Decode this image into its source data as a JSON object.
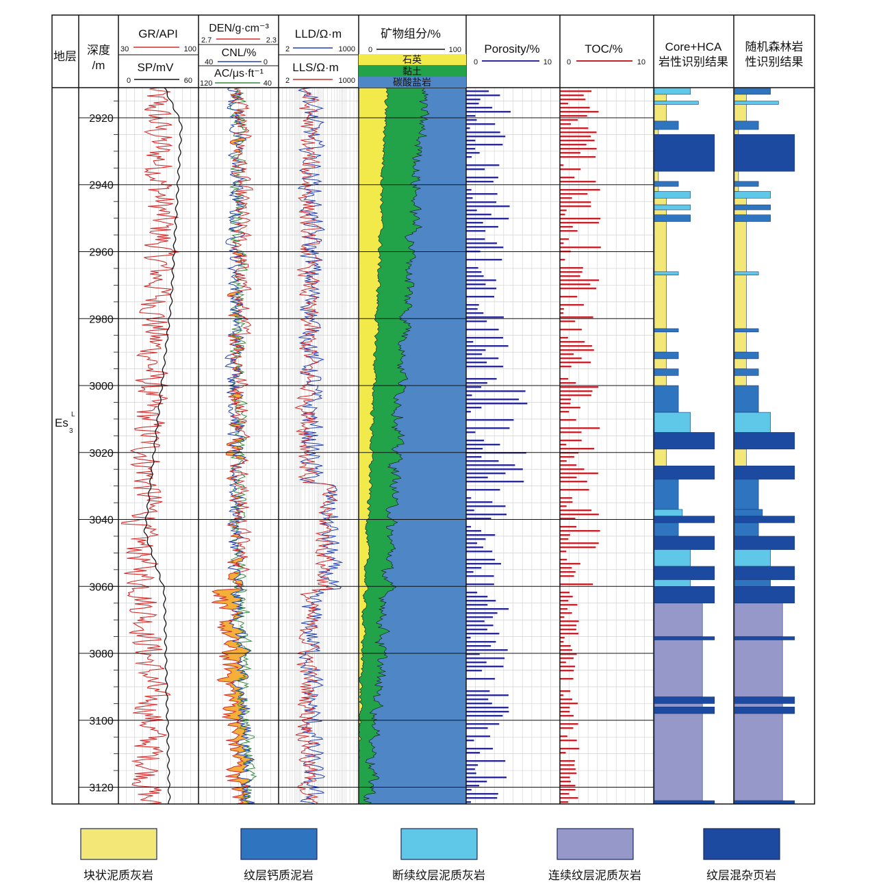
{
  "tracks": {
    "formation": {
      "header": "地层",
      "label_main": "Es",
      "label_sub": "3",
      "label_sup": "L"
    },
    "depth": {
      "header_line1": "深度",
      "header_line2": "/m",
      "ticks": [
        2920,
        2940,
        2960,
        2980,
        3000,
        3020,
        3040,
        3060,
        3080,
        3100,
        3120
      ]
    },
    "gr_sp": {
      "gr_title": "GR/API",
      "gr_min": "30",
      "gr_max": "100",
      "gr_color": "#d42a2a",
      "sp_title": "SP/mV",
      "sp_min": "0",
      "sp_max": "60",
      "sp_color": "#111111"
    },
    "den_cnl_ac": {
      "den_title": "DEN/g·cm⁻³",
      "den_min": "2.7",
      "den_max": "2.3",
      "den_color": "#d42a2a",
      "cnl_title": "CNL/%",
      "cnl_min": "40",
      "cnl_max": "0",
      "cnl_color": "#1f3fb5",
      "ac_title": "AC/μs·ft⁻¹",
      "ac_min": "120",
      "ac_max": "40",
      "ac_color": "#2f8a3a",
      "fill_color": "#f5a623"
    },
    "resistivity": {
      "lld_title": "LLD/Ω·m",
      "lld_min": "2",
      "lld_max": "1000",
      "lld_color": "#1f3fb5",
      "lls_title": "LLS/Ω·m",
      "lls_min": "2",
      "lls_max": "1000",
      "lls_color": "#d42a2a"
    },
    "mineral": {
      "title": "矿物组分/%",
      "min": "0",
      "max": "100",
      "quartz": "石英",
      "clay": "黏土",
      "carbonate": "碳酸盐岩",
      "quartz_color": "#f2ea4a",
      "clay_color": "#22a34a",
      "carbonate_color": "#4f86c6"
    },
    "porosity": {
      "title": "Porosity/%",
      "min": "0",
      "max": "10",
      "color": "#2a2a9a"
    },
    "toc": {
      "title": "TOC/%",
      "min": "0",
      "max": "10",
      "color": "#c8222a"
    },
    "core_hca": {
      "title_line1": "Core+HCA",
      "title_line2": "岩性识别结果"
    },
    "random_forest": {
      "title_line1": "随机森林岩",
      "title_line2": "性识别结果"
    }
  },
  "legend": [
    {
      "label": "块状泥质灰岩",
      "color": "#f3e877"
    },
    {
      "label": "纹层钙质泥岩",
      "color": "#2f74be"
    },
    {
      "label": "断续纹层泥质灰岩",
      "color": "#5fc8e8"
    },
    {
      "label": "连续纹层泥质灰岩",
      "color": "#9598c9"
    },
    {
      "label": "纹层混杂页岩",
      "color": "#1c4aa0"
    }
  ],
  "depth_range": [
    2911,
    3125
  ]
}
